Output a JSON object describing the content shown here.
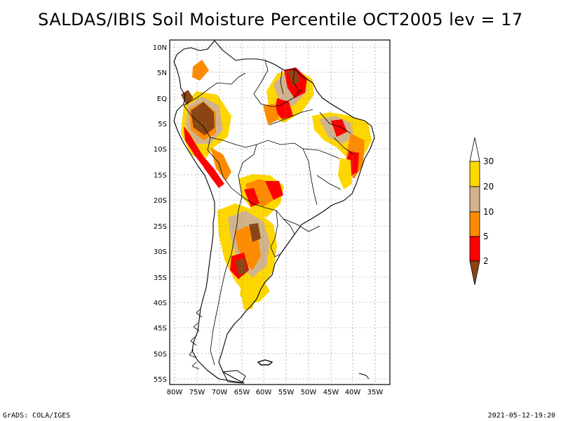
{
  "title": "SALDAS/IBIS Soil Moisture Percentile OCT2005 lev = 17",
  "footer": {
    "left": "GrADS: COLA/IGES",
    "right": "2021-05-12-19:20"
  },
  "map": {
    "lat_labels": [
      "10N",
      "5N",
      "EQ",
      "5S",
      "10S",
      "15S",
      "20S",
      "25S",
      "30S",
      "35S",
      "40S",
      "45S",
      "50S",
      "55S"
    ],
    "lon_labels": [
      "80W",
      "75W",
      "70W",
      "65W",
      "60W",
      "55W",
      "50W",
      "45W",
      "40W",
      "35W"
    ],
    "lon_range": [
      -80,
      -33
    ],
    "lat_range": [
      -56,
      11
    ]
  },
  "colorbar": {
    "labels": [
      "2",
      "5",
      "10",
      "20",
      "30"
    ],
    "colors": {
      "below_2": "#8B4513",
      "2_5": "#FF0000",
      "5_10": "#FF8C00",
      "10_20": "#D2B48C",
      "20_30": "#FFD700",
      "above_30": "#FFFFFF"
    }
  }
}
